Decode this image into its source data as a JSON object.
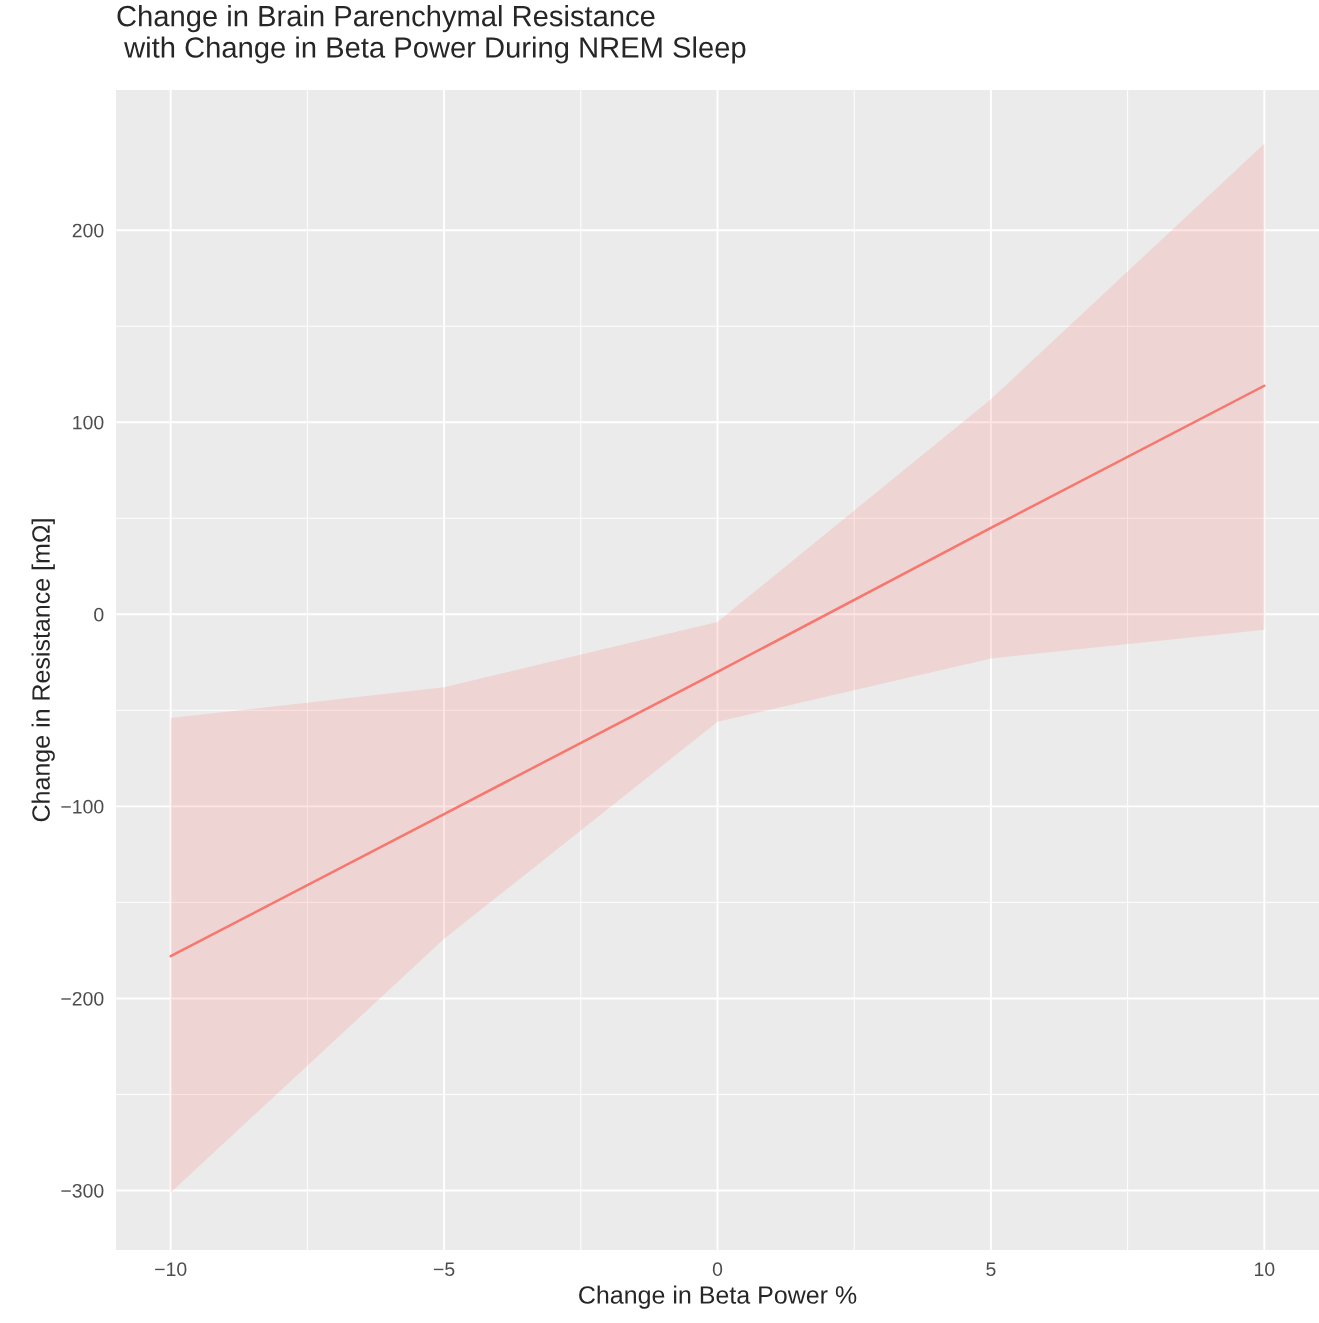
{
  "chart_data": {
    "type": "line",
    "title": "Change in Brain Parenchymal Resistance\n with Change in Beta Power During NREM Sleep",
    "xlabel": "Change in Beta Power %",
    "ylabel": "Change in Resistance [mΩ]",
    "series": [
      {
        "color": "#f8766d",
        "x": [
          -10,
          -5,
          0,
          5,
          10
        ],
        "values": [
          -178,
          -104,
          -30,
          45,
          119
        ],
        "lower": [
          -301,
          -169,
          -56,
          -23,
          -8
        ],
        "upper": [
          -54,
          -38,
          -4,
          112,
          245
        ]
      }
    ],
    "xlim": [
      -11,
      11
    ],
    "ylim": [
      -331,
      273
    ],
    "xticks": [
      {
        "value": -10,
        "label": "−10"
      },
      {
        "value": -5,
        "label": "−5"
      },
      0,
      5,
      10
    ],
    "yticks": [
      {
        "value": -300,
        "label": "−300"
      },
      {
        "value": -200,
        "label": "−200"
      },
      {
        "value": -100,
        "label": "−100"
      },
      0,
      100,
      200
    ],
    "grid": true,
    "line_style": "solid"
  }
}
